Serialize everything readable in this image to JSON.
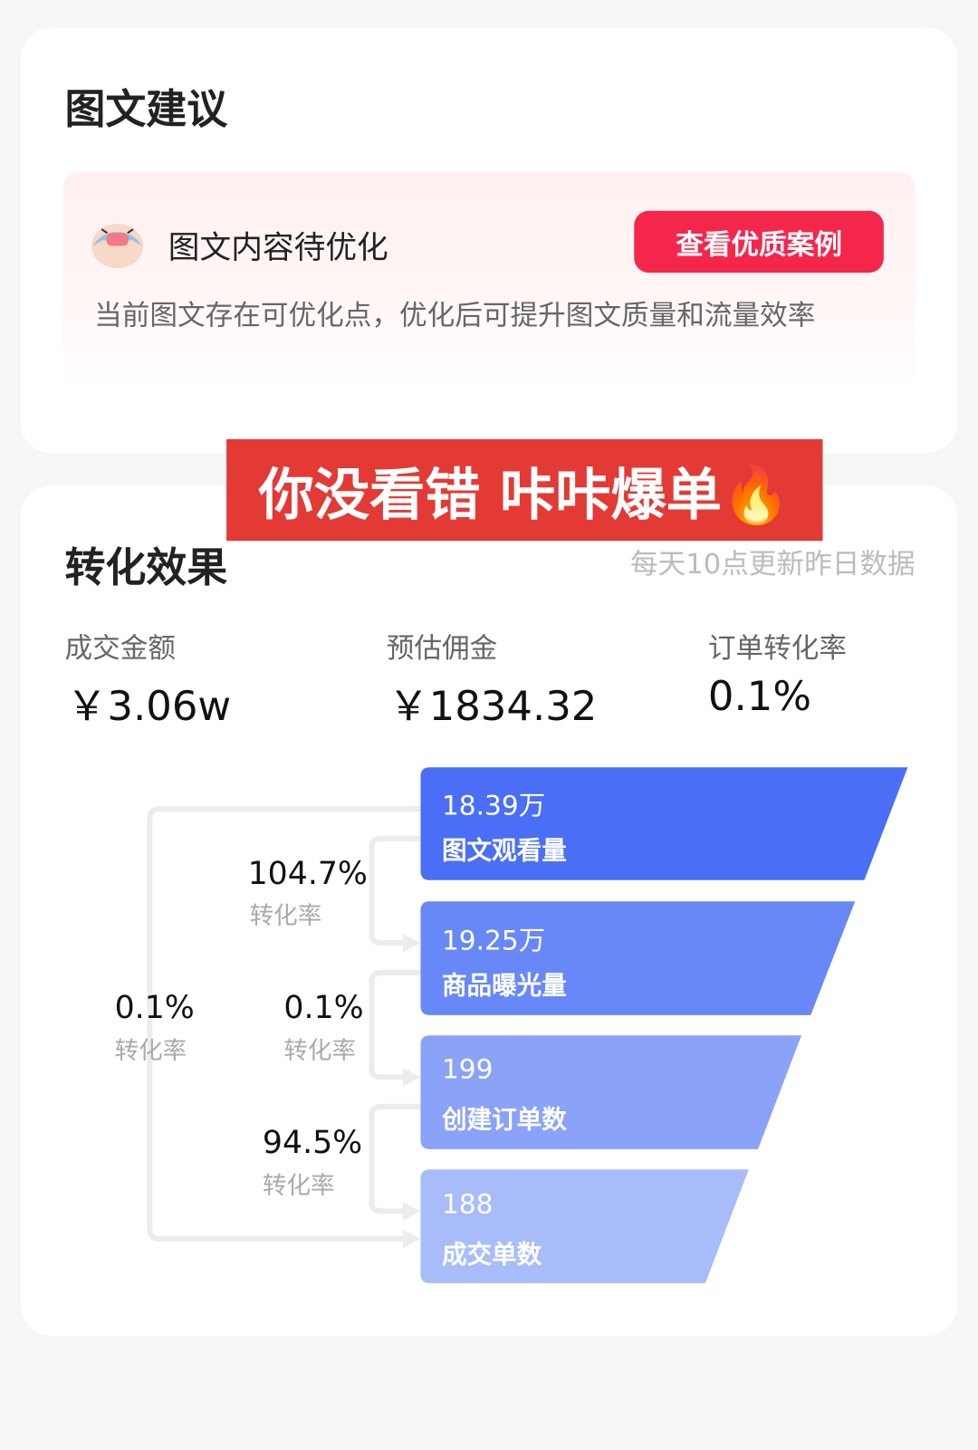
{
  "suggestion": {
    "title": "图文建议",
    "tip_title": "图文内容待优化",
    "tip_button": "查看优质案例",
    "tip_desc": "当前图文存在可优化点，优化后可提升图文质量和流量效率",
    "accent": "#f5264c"
  },
  "banner": {
    "text": "你没看错 咔咔爆单🔥",
    "color": "#e33a35"
  },
  "conversion": {
    "title": "转化效果",
    "update_note": "每天10点更新昨日数据",
    "metrics": [
      {
        "label": "成交金额",
        "value": "￥3.06w"
      },
      {
        "label": "预估佣金",
        "value": "￥1834.32"
      },
      {
        "label": "订单转化率",
        "value": "0.1%"
      }
    ],
    "funnel": [
      {
        "value": "18.39万",
        "label": "图文观看量",
        "color": "#4a6ef5"
      },
      {
        "value": "19.25万",
        "label": "商品曝光量",
        "color": "#6788f6"
      },
      {
        "value": "199",
        "label": "创建订单数",
        "color": "#8aa3f8"
      },
      {
        "value": "188",
        "label": "成交单数",
        "color": "#a9bcfa"
      }
    ],
    "rates": [
      {
        "value": "104.7%",
        "label": "转化率"
      },
      {
        "value": "0.1%",
        "label": "转化率"
      },
      {
        "value": "94.5%",
        "label": "转化率"
      },
      {
        "value": "0.1%",
        "label": "转化率"
      }
    ]
  }
}
